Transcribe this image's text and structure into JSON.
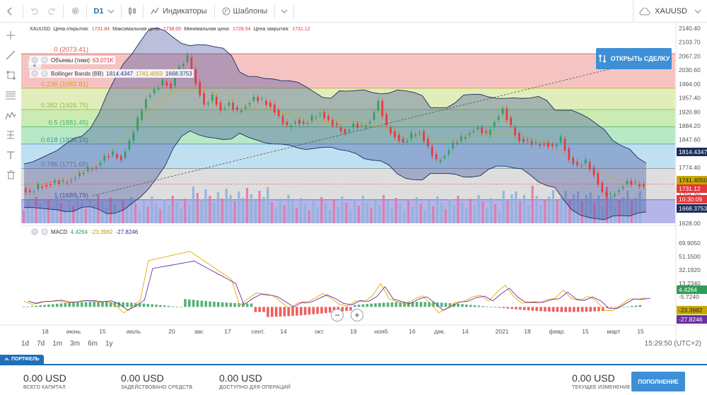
{
  "toolbar": {
    "timeframe": "D1",
    "indicators_label": "Индикаторы",
    "templates_label": "Шаблоны",
    "symbol": "XAUUSD"
  },
  "header": {
    "symbol": "XAUUSD",
    "open_label": "Цена открытия:",
    "open_value": "1731.84",
    "high_label": "Максимальная цена:",
    "high_value": "1738.00",
    "low_label": "Минимальная цена:",
    "low_value": "1728.54",
    "close_label": "Цена закрытия:",
    "close_value": "1731.12",
    "layers_count": "2"
  },
  "open_deal_label": "ОТКРЫТЬ СДЕЛКУ",
  "legends": {
    "volume_name": "Объемы (тики)",
    "volume_value": "63.071K",
    "bb_name": "Bollinger Bands (BB)",
    "bb_upper": "1814.4347",
    "bb_middle": "1741.4050",
    "bb_lower": "1668.3753",
    "macd_name": "MACD",
    "macd_v1": "4.4264",
    "macd_v2": "-23.3982",
    "macd_v3": "-27.8246"
  },
  "fib_levels": [
    {
      "label": "0 (2073.41)",
      "price": 2073.41
    },
    {
      "label": "0.236 (1982.81)",
      "price": 1982.81
    },
    {
      "label": "0.382 (1926.75)",
      "price": 1926.75
    },
    {
      "label": "0.5 (1881.45)",
      "price": 1881.45
    },
    {
      "label": "0.618 (1836.15)",
      "price": 1836.15
    },
    {
      "label": "0.786 (1771.65)",
      "price": 1771.65
    },
    {
      "label": "1 (1689.79)",
      "price": 1689.79
    }
  ],
  "price_axis": [
    "2140.40",
    "2103.70",
    "2067.20",
    "2030.60",
    "1994.00",
    "1957.40",
    "1920.80",
    "1884.20",
    "1847.60",
    "1811.00",
    "1774.40",
    "1737.80",
    "1701.20",
    "1664.60",
    "1628.00"
  ],
  "price_tags": [
    {
      "text": "1814.4347",
      "color": "#1c2e5c"
    },
    {
      "text": "1741.4050",
      "color": "#c9a800"
    },
    {
      "text": "1731.12",
      "color": "#e8373a"
    },
    {
      "text": "10:30:09",
      "color": "#e8373a"
    },
    {
      "text": "1668.3753",
      "color": "#1c2e5c"
    }
  ],
  "macd_axis": [
    "69.9050",
    "51.1500",
    "32.1920",
    "13.2340",
    "-5.7240",
    "-24.6820"
  ],
  "macd_tags": [
    {
      "text": "4.4264",
      "color": "#2e9e5a"
    },
    {
      "text": "-23.3982",
      "color": "#c9a800"
    },
    {
      "text": "-27.8246",
      "color": "#6a2fa0"
    }
  ],
  "time_axis": [
    "18",
    "июнь",
    "15",
    "июль",
    "20",
    "авг.",
    "17",
    "сент.",
    "14",
    "окт.",
    "19",
    "нояб.",
    "16",
    "дек.",
    "14",
    "2021",
    "18",
    "февр.",
    "15",
    "март",
    "15"
  ],
  "ranges": [
    "1d",
    "7d",
    "1m",
    "3m",
    "6m",
    "1y"
  ],
  "clock": "15:29:50 (UTC+2)",
  "portfolio": {
    "tab_label": "ПОРТФЕЛЬ",
    "total_value": "0.00 USD",
    "total_label": "ВСЕГО КАПИТАЛ",
    "used_value": "0.00 USD",
    "used_label": "ЗАДЕЙСТВОВАНО СРЕДСТВ",
    "available_value": "0.00 USD",
    "available_label": "ДОСТУПНО ДЛЯ ОПЕРАЦИЙ",
    "change_value": "0.00 USD",
    "change_label": "ТЕКУЩЕЕ ИЗМЕНЕНИЕ",
    "deposit_label": "ПОПОЛНЕНИЕ"
  },
  "chart_data": {
    "type": "candlestick",
    "symbol": "XAUUSD",
    "timeframe": "D1",
    "price_range": [
      1628.0,
      2140.4
    ],
    "close_series": [
      1720,
      1710,
      1725,
      1730,
      1740,
      1735,
      1745,
      1760,
      1770,
      1780,
      1805,
      1810,
      1800,
      1845,
      1900,
      1960,
      1980,
      2000,
      1990,
      2040,
      2065,
      2000,
      1940,
      1960,
      1930,
      1945,
      1920,
      1940,
      1960,
      1950,
      1940,
      1910,
      1880,
      1900,
      1890,
      1905,
      1920,
      1900,
      1880,
      1870,
      1890,
      1880,
      1900,
      1950,
      1880,
      1860,
      1840,
      1860,
      1870,
      1830,
      1790,
      1810,
      1840,
      1850,
      1870,
      1880,
      1860,
      1900,
      1930,
      1880,
      1850,
      1845,
      1835,
      1840,
      1830,
      1850,
      1800,
      1780,
      1790,
      1760,
      1710,
      1700,
      1720,
      1740,
      1730,
      1731
    ],
    "macd": {
      "range": [
        -24.682,
        69.905
      ],
      "last_histogram": 4.4264,
      "last_signal": -23.3982,
      "last_macd": -27.8246
    },
    "bollinger": {
      "upper": 1814.4347,
      "middle": 1741.405,
      "lower": 1668.3753
    },
    "volume_last": "63.071K"
  }
}
